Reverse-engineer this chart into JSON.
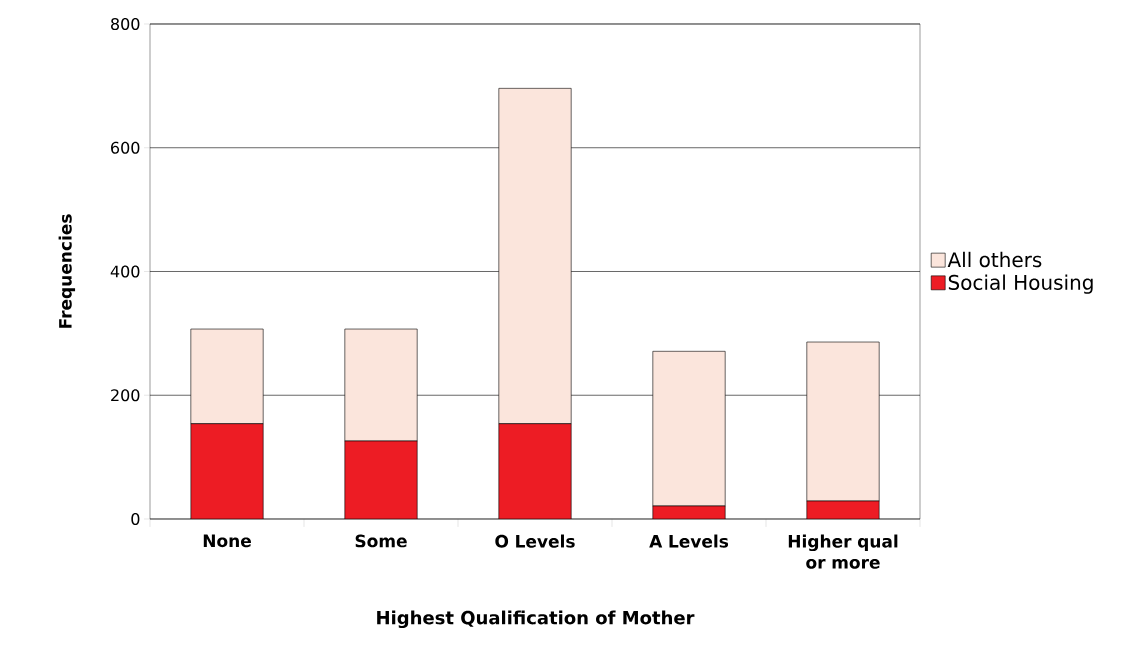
{
  "chart_data": {
    "type": "bar",
    "stacked": true,
    "xlabel": "Highest Qualification of Mother",
    "ylabel": "Frequencies",
    "categories": [
      "None",
      "Some",
      "O Levels",
      "A Levels",
      "Higher qual or more"
    ],
    "series": [
      {
        "name": "Social Housing",
        "color": "#ed1c24",
        "values": [
          154,
          126,
          154,
          21,
          29
        ]
      },
      {
        "name": "All others",
        "color": "#fbe5dc",
        "values": [
          153,
          181,
          542,
          250,
          257
        ]
      }
    ],
    "ylim": [
      0,
      800
    ],
    "yticks": [
      0,
      200,
      400,
      600,
      800
    ],
    "grid": "y",
    "legend": "right"
  }
}
